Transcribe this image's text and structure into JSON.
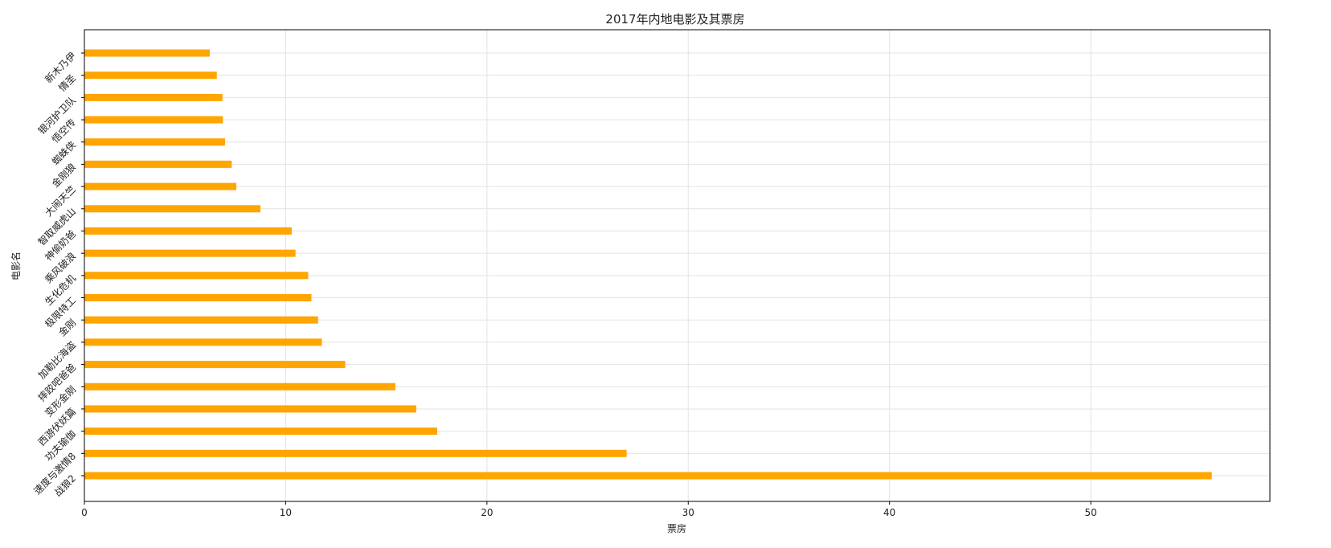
{
  "chart_data": {
    "type": "bar",
    "orientation": "horizontal",
    "title": "2017年内地电影及其票房",
    "xlabel": "票房",
    "ylabel": "电影名",
    "xlim": [
      0,
      58.9
    ],
    "xticks": [
      0,
      10,
      20,
      30,
      40,
      50
    ],
    "grid": true,
    "bar_color": "#FFA500",
    "categories": [
      "战狼2",
      "速度与激情8",
      "功夫瑜伽",
      "西游伏妖篇",
      "变形金刚",
      "摔跤吧爸爸",
      "加勒比海盗",
      "金刚",
      "极限特工",
      "生化危机",
      "乘风破浪",
      "神偷奶爸",
      "智取威虎山",
      "大闹天竺",
      "金刚狼",
      "蜘蛛侠",
      "悟空传",
      "银河护卫队",
      "情圣",
      "新木乃伊"
    ],
    "values": [
      56.01,
      26.94,
      17.53,
      16.49,
      15.45,
      12.96,
      11.8,
      11.61,
      11.28,
      11.12,
      10.49,
      10.3,
      8.75,
      7.55,
      7.32,
      6.99,
      6.88,
      6.86,
      6.58,
      6.23
    ]
  }
}
